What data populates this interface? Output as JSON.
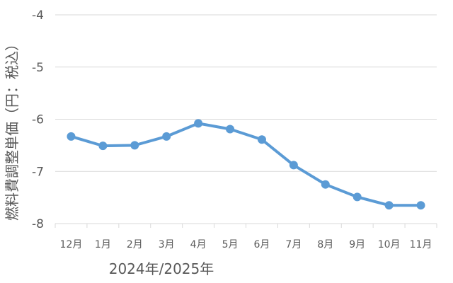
{
  "chart_data": {
    "type": "line",
    "categories": [
      "12月",
      "1月",
      "2月",
      "3月",
      "4月",
      "5月",
      "6月",
      "7月",
      "8月",
      "9月",
      "10月",
      "11月"
    ],
    "series": [
      {
        "values": [
          -6.33,
          -6.51,
          -6.5,
          -6.33,
          -6.08,
          -6.19,
          -6.39,
          -6.88,
          -7.25,
          -7.49,
          -7.65,
          -7.65
        ]
      }
    ],
    "ylabel": "燃料費調整単価（円：税込）",
    "xlabel": "2024年/2025年",
    "ylim": [
      -8,
      -4
    ],
    "yticks": [
      -4,
      -5,
      -6,
      -7,
      -8
    ],
    "grid": true,
    "line_color": "#5b9bd5",
    "grid_color": "#d9d9d9"
  }
}
